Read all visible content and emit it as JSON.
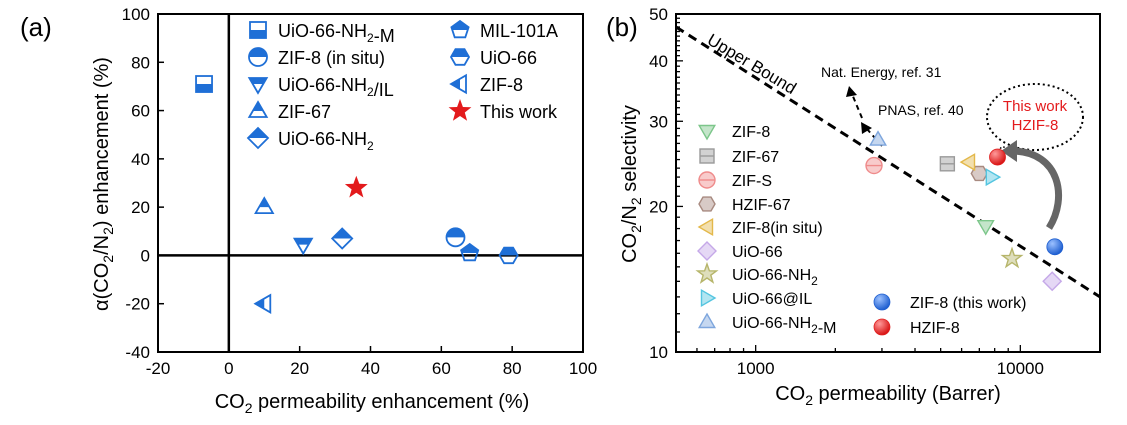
{
  "chart_data": [
    {
      "panel_label": "(a)",
      "type": "scatter",
      "xlabel": "CO2 permeability enhancement (%)",
      "ylabel": "α(CO2/N2) enhancement (%)",
      "xlim": [
        -20,
        100
      ],
      "ylim": [
        -40,
        100
      ],
      "xticks": [
        "-20",
        "0",
        "20",
        "40",
        "60",
        "80",
        "100"
      ],
      "yticks": [
        "-40",
        "-20",
        "0",
        "20",
        "40",
        "60",
        "80",
        "100"
      ],
      "zero_lines": true,
      "legend": {
        "placement": "top",
        "columns": 2
      },
      "series": [
        {
          "name": "UiO-66-NH2-M",
          "marker": "square-bottom-half",
          "color": "#1f6fd6",
          "points": [
            [
              -7,
              71
            ]
          ]
        },
        {
          "name": "ZIF-8 (in situ)",
          "marker": "circle-top-half",
          "color": "#1f6fd6",
          "points": [
            [
              64,
              7.5
            ]
          ]
        },
        {
          "name": "UiO-66-NH2/IL",
          "marker": "triangle-down-half",
          "color": "#1f6fd6",
          "points": [
            [
              21,
              4.5
            ]
          ]
        },
        {
          "name": "ZIF-67",
          "marker": "triangle-up-half",
          "color": "#1f6fd6",
          "points": [
            [
              10,
              20
            ]
          ]
        },
        {
          "name": "UiO-66-NH2",
          "marker": "diamond-half",
          "color": "#1f6fd6",
          "points": [
            [
              32,
              7
            ]
          ]
        },
        {
          "name": "MIL-101A",
          "marker": "pentagon-half",
          "color": "#1f6fd6",
          "points": [
            [
              68,
              1
            ]
          ]
        },
        {
          "name": "UiO-66",
          "marker": "hexagon-half",
          "color": "#1f6fd6",
          "points": [
            [
              79,
              0
            ]
          ]
        },
        {
          "name": "ZIF-8",
          "marker": "triangle-left-half",
          "color": "#1f6fd6",
          "points": [
            [
              10,
              -20
            ]
          ]
        },
        {
          "name": "This work",
          "marker": "star",
          "color": "#e31a1c",
          "points": [
            [
              36,
              28
            ]
          ]
        }
      ]
    },
    {
      "panel_label": "(b)",
      "type": "scatter",
      "xlabel": "CO2 permeability (Barrer)",
      "ylabel": "CO2/N2 selectivity",
      "xscale": "log",
      "yscale": "log",
      "xlim": [
        500,
        20000
      ],
      "ylim": [
        10,
        50
      ],
      "xticks": [
        "1000",
        "10000"
      ],
      "yticks": [
        "10",
        "20",
        "30",
        "40",
        "50"
      ],
      "legend": {
        "placement": "bottom-left"
      },
      "upper_bound": {
        "label": "Upper Bound",
        "points": [
          [
            500,
            47
          ],
          [
            20000,
            13
          ]
        ]
      },
      "annotations": [
        {
          "text": "Nat. Energy, ref. 31"
        },
        {
          "text": "PNAS, ref. 40"
        },
        {
          "text": "This work",
          "color": "#e31a1c"
        },
        {
          "text": "HZIF-8",
          "color": "#e31a1c"
        }
      ],
      "series": [
        {
          "name": "ZIF-8",
          "color": "#7cc68a",
          "points": [
            [
              7400,
              18.2
            ]
          ]
        },
        {
          "name": "ZIF-67",
          "color": "#9a9a9a",
          "points": [
            [
              5300,
              24.5
            ]
          ]
        },
        {
          "name": "ZIF-S",
          "color": "#ef8b8b",
          "points": [
            [
              2800,
              24.3
            ]
          ]
        },
        {
          "name": "HZIF-67",
          "color": "#a88a80",
          "points": [
            [
              7000,
              23.4
            ]
          ]
        },
        {
          "name": "ZIF-8(in situ)",
          "color": "#e3b84a",
          "points": [
            [
              6400,
              24.7
            ]
          ]
        },
        {
          "name": "UiO-66",
          "color": "#c5a8e8",
          "points": [
            [
              13200,
              14
            ]
          ]
        },
        {
          "name": "UiO-66-NH2",
          "color": "#b6b56a",
          "points": [
            [
              9300,
              15.6
            ]
          ]
        },
        {
          "name": "UiO-66@IL",
          "color": "#54c5e0",
          "points": [
            [
              7800,
              23
            ]
          ]
        },
        {
          "name": "UiO-66-NH2-M",
          "color": "#7ea6dd",
          "points": [
            [
              2900,
              27.5
            ]
          ]
        },
        {
          "name": "ZIF-8 (this work)",
          "color": "#1f5fd0",
          "points": [
            [
              13500,
              16.5
            ]
          ]
        },
        {
          "name": "HZIF-8",
          "color": "#e02020",
          "points": [
            [
              8200,
              25.3
            ]
          ]
        }
      ]
    }
  ]
}
